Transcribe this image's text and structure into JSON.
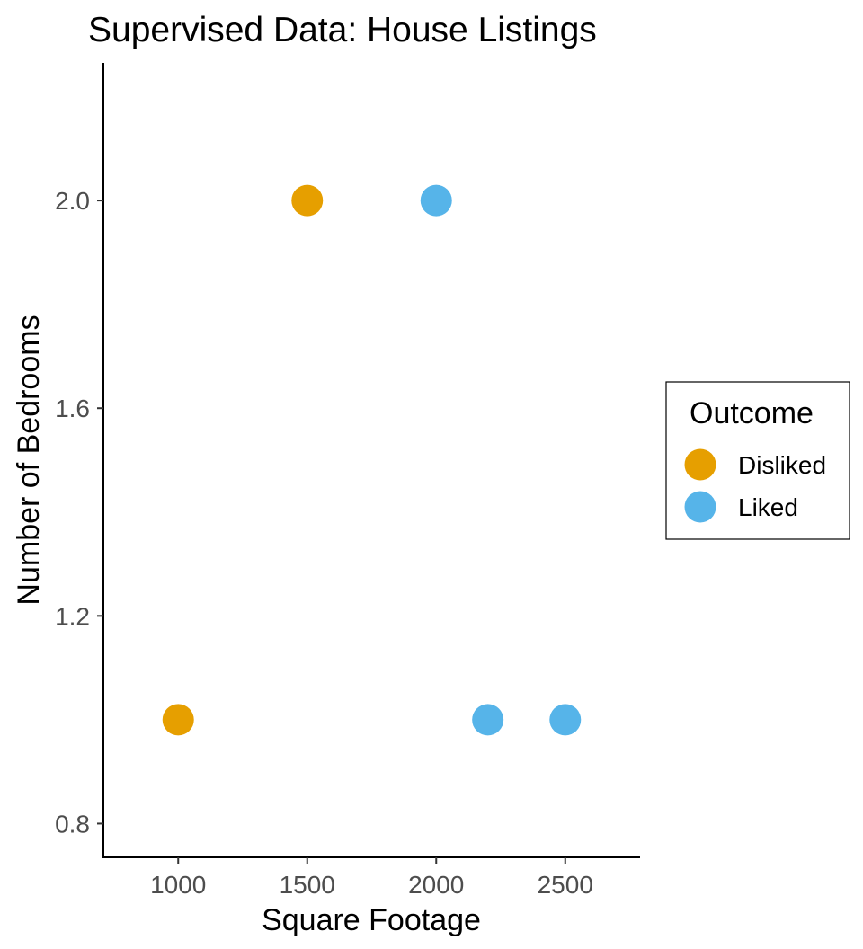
{
  "chart_data": {
    "type": "scatter",
    "title": "Supervised Data: House Listings",
    "xlabel": "Square Footage",
    "ylabel": "Number of Bedrooms",
    "xlim": [
      710,
      2790
    ],
    "ylim": [
      0.735,
      2.265
    ],
    "x_ticks": [
      1000,
      1500,
      2000,
      2500
    ],
    "x_tick_labels": [
      "1000",
      "1500",
      "2000",
      "2500"
    ],
    "y_ticks": [
      0.8,
      1.2,
      1.6,
      2.0
    ],
    "y_tick_labels": [
      "0.8",
      "1.2",
      "1.6",
      "2.0"
    ],
    "grid": false,
    "legend": {
      "title": "Outcome",
      "placement": "right"
    },
    "series": [
      {
        "name": "Disliked",
        "color": "#E69F00",
        "points": [
          {
            "x": 1000,
            "y": 1.0
          },
          {
            "x": 1500,
            "y": 2.0
          }
        ]
      },
      {
        "name": "Liked",
        "color": "#56B4E9",
        "points": [
          {
            "x": 2000,
            "y": 2.0
          },
          {
            "x": 2200,
            "y": 1.0
          },
          {
            "x": 2500,
            "y": 1.0
          }
        ]
      }
    ]
  }
}
